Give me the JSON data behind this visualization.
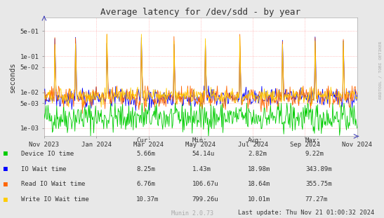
{
  "title": "Average latency for /dev/sdd - by year",
  "ylabel": "seconds",
  "bg_color": "#e8e8e8",
  "plot_bg_color": "#ffffff",
  "grid_color": "#ff9999",
  "right_label": "RRDTOOL / TOBI OETIKER",
  "x_tick_labels": [
    "Nov 2023",
    "Jan 2024",
    "Mar 2024",
    "May 2024",
    "Jul 2024",
    "Sep 2024",
    "Nov 2024"
  ],
  "y_ticks": [
    0.001,
    0.005,
    0.01,
    0.05,
    0.1,
    0.5
  ],
  "y_tick_labels": [
    "1e-03",
    "5e-03",
    "1e-02",
    "5e-02",
    "1e-01",
    "5e-01"
  ],
  "ylim_low": 0.0006,
  "ylim_high": 1.2,
  "legend_entries": [
    {
      "label": "Device IO time",
      "color": "#00cc00"
    },
    {
      "label": "IO Wait time",
      "color": "#0000ff"
    },
    {
      "label": "Read IO Wait time",
      "color": "#ff6600"
    },
    {
      "label": "Write IO Wait time",
      "color": "#ffcc00"
    }
  ],
  "legend_cols": [
    {
      "header": "Cur:",
      "values": [
        "5.66m",
        "8.25m",
        "6.76m",
        "10.37m"
      ]
    },
    {
      "header": "Min:",
      "values": [
        "54.14u",
        "1.43m",
        "106.67u",
        "799.26u"
      ]
    },
    {
      "header": "Avg:",
      "values": [
        "2.82m",
        "18.98m",
        "18.64m",
        "10.01m"
      ]
    },
    {
      "header": "Max:",
      "values": [
        "9.22m",
        "343.89m",
        "355.75m",
        "77.27m"
      ]
    }
  ],
  "footer_left": "Munin 2.0.73",
  "footer_right": "Last update: Thu Nov 21 01:00:32 2024",
  "seed": 42,
  "num_points": 500
}
